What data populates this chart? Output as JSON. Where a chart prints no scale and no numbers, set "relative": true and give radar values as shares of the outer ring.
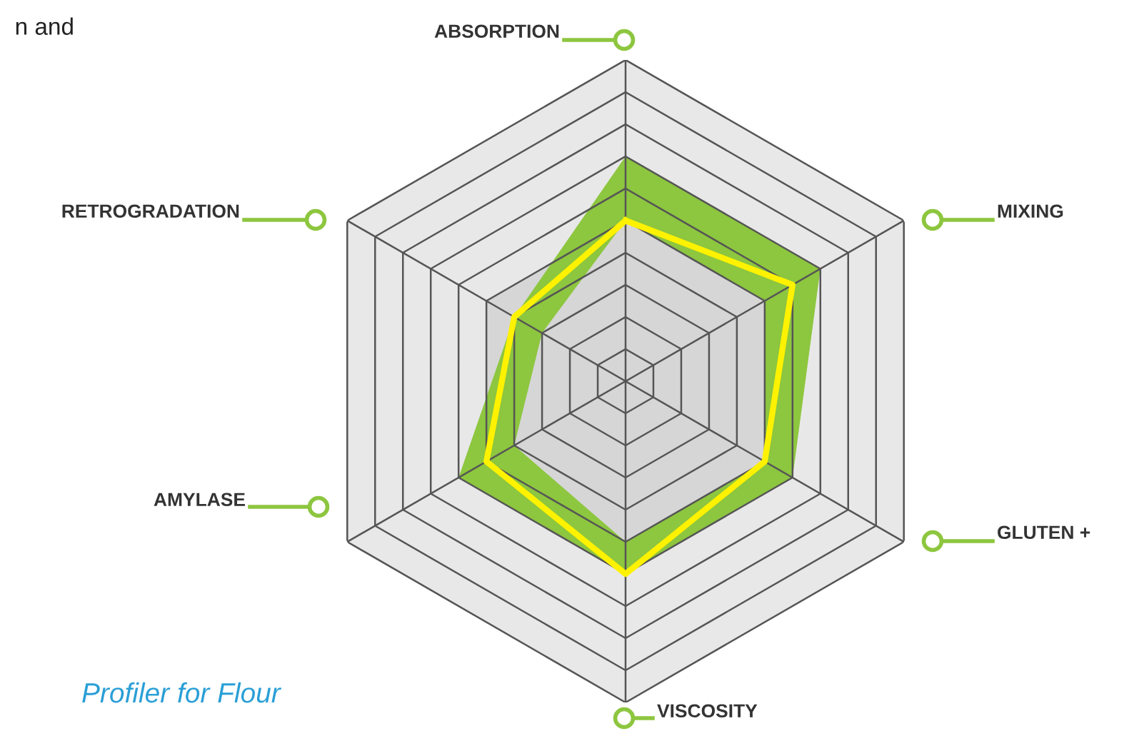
{
  "chart_data": {
    "type": "radar",
    "categories": [
      "ABSORPTION",
      "MIXING",
      "GLUTEN +",
      "VISCOSITY",
      "AMYLASE",
      "RETROGRADATION"
    ],
    "relative": true,
    "grid": true,
    "series": [
      {
        "type": "area",
        "color": "#8dc63f",
        "values": [
          0.7,
          0.7,
          0.6,
          0.6,
          0.6,
          0.4
        ]
      },
      {
        "type": "area",
        "color": "#d6d6d6",
        "values": [
          0.5,
          0.5,
          0.5,
          0.5,
          0.4,
          0.3
        ]
      },
      {
        "color": "#fff200",
        "values": [
          0.5,
          0.6,
          0.5,
          0.6,
          0.5,
          0.4
        ]
      }
    ],
    "annotations": [
      "n and",
      "Profiler for Flour"
    ]
  }
}
